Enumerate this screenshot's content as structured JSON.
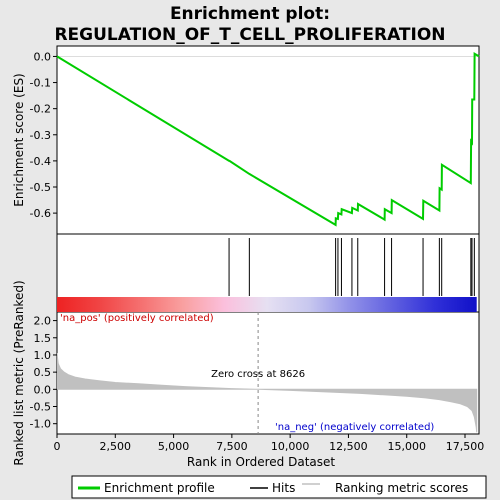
{
  "chart_data": {
    "type": "line",
    "title_lines": [
      "Enrichment plot:",
      "REGULATION_OF_T_CELL_PROLIFERATION"
    ],
    "top_panel": {
      "ylabel": "Enrichment score (ES)",
      "ylim": [
        -0.68,
        0.04
      ],
      "yticks": [
        0.0,
        -0.1,
        -0.2,
        -0.3,
        -0.4,
        -0.5,
        -0.6
      ],
      "ytick_labels": [
        "0.0",
        "-0.1",
        "-0.2",
        "-0.3",
        "-0.4",
        "-0.5",
        "-0.6"
      ],
      "line_color": "#00cc00",
      "enrichment_profile": {
        "x": [
          0,
          7380,
          7400,
          8250,
          11950,
          11960,
          12050,
          12060,
          12200,
          12210,
          12650,
          12660,
          12900,
          12910,
          14050,
          14060,
          14350,
          14360,
          15700,
          15710,
          16400,
          16410,
          16500,
          16510,
          17750,
          17760,
          17800,
          17810,
          17900,
          17910,
          18100
        ],
        "y": [
          0.0,
          -0.4,
          -0.4,
          -0.45,
          -0.645,
          -0.62,
          -0.622,
          -0.6,
          -0.605,
          -0.585,
          -0.6,
          -0.58,
          -0.59,
          -0.565,
          -0.625,
          -0.585,
          -0.6,
          -0.55,
          -0.622,
          -0.553,
          -0.59,
          -0.505,
          -0.51,
          -0.415,
          -0.485,
          -0.325,
          -0.33,
          -0.165,
          -0.165,
          0.01,
          0.0
        ]
      }
    },
    "hits_panel": {
      "hit_positions": [
        7380,
        8250,
        11950,
        12050,
        12200,
        12650,
        12900,
        14050,
        14350,
        15700,
        16400,
        16500,
        17750,
        17800,
        17900
      ]
    },
    "bar_gradient_colors": [
      "#ee2222",
      "#f04444",
      "#f57070",
      "#f9a0a0",
      "#fbc0dd",
      "#e6e0f2",
      "#c8c8ef",
      "#9090e8",
      "#6060e0",
      "#3030d8",
      "#1010c8"
    ],
    "bottom_panel": {
      "ylabel": "Ranked list metric (PreRanked)",
      "ylim": [
        -1.3,
        2.25
      ],
      "yticks": [
        2.0,
        1.5,
        1.0,
        0.5,
        0.0,
        -0.5,
        -1.0
      ],
      "ytick_labels": [
        "2.0",
        "1.5",
        "1.0",
        "0.5",
        "0.0",
        "-0.5",
        "-1.0"
      ],
      "fill_color": "#c0c0c0",
      "metric_curve": {
        "x": [
          0,
          50,
          150,
          300,
          500,
          800,
          1200,
          1800,
          2500,
          3500,
          4500,
          5500,
          6500,
          7500,
          8626,
          10000,
          11000,
          12000,
          13000,
          14000,
          15000,
          15800,
          16400,
          16900,
          17300,
          17600,
          17800,
          17900,
          17980,
          18000
        ],
        "y": [
          1.05,
          0.75,
          0.6,
          0.5,
          0.42,
          0.35,
          0.3,
          0.25,
          0.2,
          0.16,
          0.12,
          0.08,
          0.05,
          0.02,
          0.0,
          -0.03,
          -0.06,
          -0.09,
          -0.12,
          -0.16,
          -0.2,
          -0.25,
          -0.3,
          -0.36,
          -0.42,
          -0.5,
          -0.62,
          -0.8,
          -1.1,
          -1.25
        ]
      },
      "zero_cross_label": "Zero cross at 8626",
      "zero_cross_x": 8626,
      "pos_label": "'na_pos' (positively correlated)",
      "neg_label": "'na_neg' (negatively correlated)",
      "pos_label_color": "#cc0000",
      "neg_label_color": "#0000cc"
    },
    "xlabel": "Rank in Ordered Dataset",
    "xlim": [
      0,
      18100
    ],
    "xticks": [
      0,
      2500,
      5000,
      7500,
      10000,
      12500,
      15000,
      17500
    ],
    "xtick_labels": [
      "0",
      "2,500",
      "5,000",
      "7,500",
      "10,000",
      "12,500",
      "15,000",
      "17,500"
    ],
    "legend": [
      "Enrichment profile",
      "Hits",
      "Ranking metric scores"
    ]
  }
}
